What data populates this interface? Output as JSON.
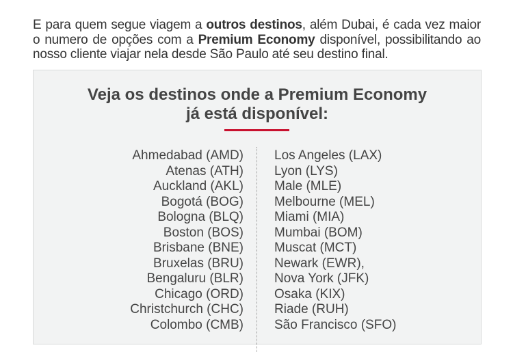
{
  "intro": {
    "part1": "E para quem segue viagem a ",
    "bold1": "outros destinos",
    "part2": ", além Dubai, é cada vez maior o numero de opções com a ",
    "bold2": "Premium Economy",
    "part3": " disponível, possibilitando ao nosso cliente viajar nela desde São Paulo até seu destino final."
  },
  "box": {
    "title_line1": "Veja os destinos onde a Premium Economy",
    "title_line2": "já está disponível:",
    "accent_color": "#c8102e",
    "left_column": [
      "Ahmedabad (AMD)",
      "Atenas (ATH)",
      "Auckland (AKL)",
      "Bogotá (BOG)",
      "Bologna (BLQ)",
      "Boston (BOS)",
      "Brisbane (BNE)",
      "Bruxelas (BRU)",
      "Bengaluru (BLR)",
      "Chicago (ORD)",
      "Christchurch (CHC)",
      "Colombo (CMB)"
    ],
    "right_column": [
      "Los Angeles (LAX)",
      "Lyon (LYS)",
      "Male (MLE)",
      "Melbourne (MEL)",
      "Miami (MIA)",
      "Mumbai (BOM)",
      "Muscat (MCT)",
      "Newark (EWR),",
      "Nova York (JFK)",
      "Osaka (KIX)",
      "Riade (RUH)",
      "São Francisco (SFO)"
    ]
  }
}
